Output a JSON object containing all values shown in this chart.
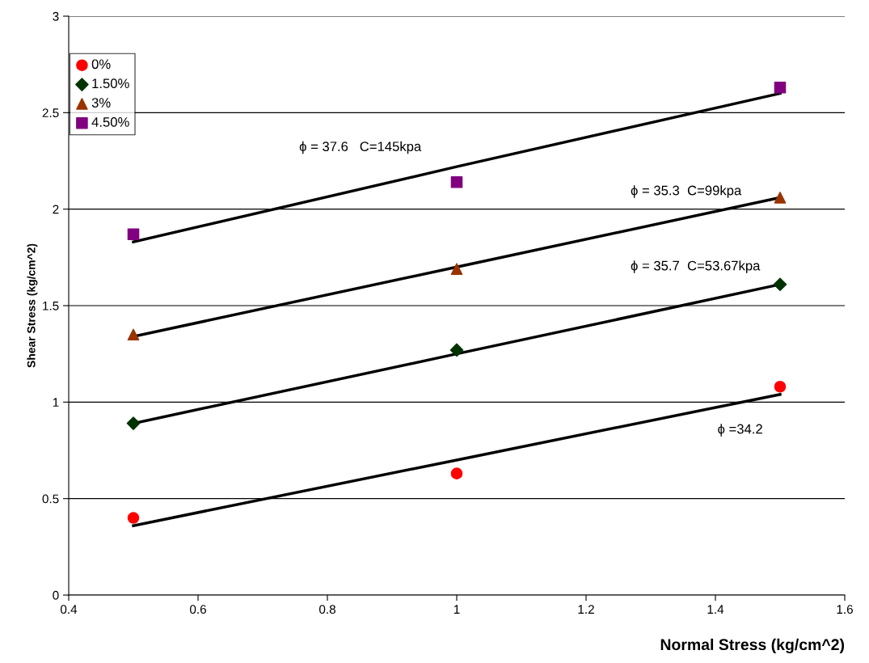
{
  "chart_data": {
    "type": "scatter",
    "xlabel": "Normal Stress (kg/cm^2)",
    "ylabel": "Shear Stress (kg/cm^2)",
    "x": [
      0.5,
      1.0,
      1.5
    ],
    "series": [
      {
        "name": "0%",
        "color": "#ff0000",
        "marker": "circle",
        "values": [
          0.4,
          0.63,
          1.08
        ]
      },
      {
        "name": "1.50%",
        "color": "#003300",
        "marker": "diamond",
        "values": [
          0.89,
          1.27,
          1.61
        ]
      },
      {
        "name": "3%",
        "color": "#993300",
        "marker": "triangle",
        "values": [
          1.35,
          1.69,
          2.06
        ]
      },
      {
        "name": "4.50%",
        "color": "#800080",
        "marker": "square",
        "values": [
          1.87,
          2.14,
          2.63
        ]
      },
      {
        "type": "line",
        "color": "#000000",
        "values": [
          0.36,
          0.7,
          1.04
        ]
      },
      {
        "type": "line",
        "color": "#000000",
        "values": [
          0.89,
          1.25,
          1.61
        ]
      },
      {
        "type": "line",
        "color": "#000000",
        "values": [
          1.34,
          1.7,
          2.06
        ]
      },
      {
        "type": "line",
        "color": "#000000",
        "values": [
          1.83,
          2.22,
          2.6
        ]
      }
    ],
    "annotations": [
      "ϕ = 37.6   C=145kpa",
      "ϕ = 35.3  C=99kpa",
      "ϕ = 35.7  C=53.67kpa",
      "ϕ =34.2"
    ],
    "xlim": [
      0.4,
      1.6
    ],
    "xticks": [
      0.4,
      0.6,
      0.8,
      1,
      1.2,
      1.4,
      1.6
    ],
    "ylim": [
      0,
      3
    ],
    "yticks": [
      0,
      0.5,
      1,
      1.5,
      2,
      2.5,
      3
    ],
    "grid": "y",
    "legend": "top left"
  }
}
